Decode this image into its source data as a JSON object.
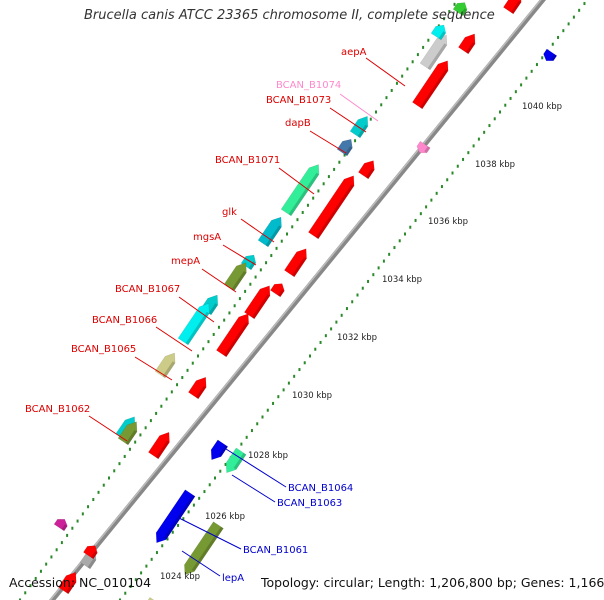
{
  "title": "Brucella canis ATCC 23365 chromosome II, complete sequence",
  "footer": {
    "accession": "Accession: NC_010104",
    "info": "Topology: circular; Length: 1,206,800 bp; Genes: 1,166"
  },
  "colors": {
    "label_top_strand": "#dd0000",
    "label_bottom_strand": "#0000cc",
    "label_highlight": "#ff88cc",
    "backbone": "#888888",
    "tick_dots": "#228822"
  },
  "scale_ticks": [
    "1024 kbp",
    "1026 kbp",
    "1028 kbp",
    "1030 kbp",
    "1032 kbp",
    "1034 kbp",
    "1036 kbp",
    "1038 kbp",
    "1040 kbp"
  ],
  "gene_labels": [
    {
      "name": "aepA",
      "strand": "top"
    },
    {
      "name": "BCAN_B1074",
      "strand": "top",
      "highlight": true
    },
    {
      "name": "BCAN_B1073",
      "strand": "top"
    },
    {
      "name": "dapB",
      "strand": "top"
    },
    {
      "name": "BCAN_B1071",
      "strand": "top"
    },
    {
      "name": "glk",
      "strand": "top"
    },
    {
      "name": "mgsA",
      "strand": "top"
    },
    {
      "name": "mepA",
      "strand": "top"
    },
    {
      "name": "BCAN_B1067",
      "strand": "top"
    },
    {
      "name": "BCAN_B1066",
      "strand": "top"
    },
    {
      "name": "BCAN_B1065",
      "strand": "top"
    },
    {
      "name": "BCAN_B1062",
      "strand": "top"
    },
    {
      "name": "BCAN_B1064",
      "strand": "bottom"
    },
    {
      "name": "BCAN_B1063",
      "strand": "bottom"
    },
    {
      "name": "BCAN_B1061",
      "strand": "bottom"
    },
    {
      "name": "lepA",
      "strand": "bottom"
    }
  ]
}
